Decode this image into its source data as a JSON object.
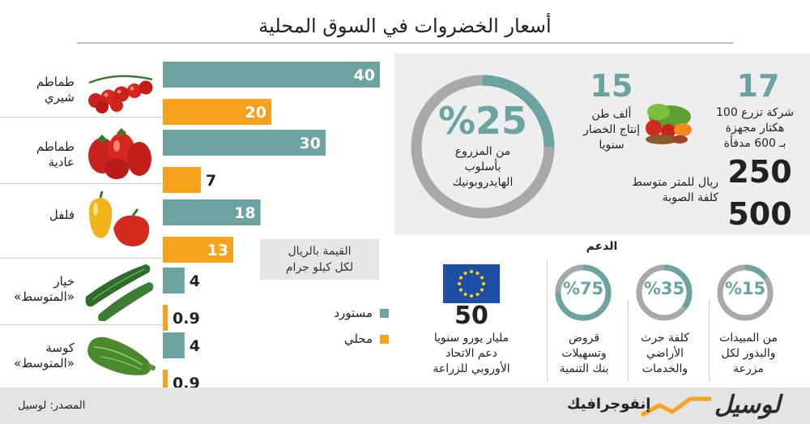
{
  "title": "أسعار الخضروات في السوق المحلية",
  "colors": {
    "imported": "#6aa39f",
    "local": "#f6a21c",
    "teal": "#6aa39f",
    "ring_bg": "#a8a8a8",
    "eu_blue": "#1f4fa5",
    "eu_star": "#ffd500"
  },
  "chart_data": {
    "type": "bar",
    "orientation": "horizontal",
    "categories": [
      "طماطم شيري",
      "طماطم عادية",
      "فلفل",
      "خيار «المتوسط»",
      "كوسة «المتوسط»"
    ],
    "series": [
      {
        "name": "مستورد",
        "values": [
          40,
          30,
          18,
          4,
          4
        ]
      },
      {
        "name": "محلي",
        "values": [
          20,
          7,
          13,
          0.9,
          0.9
        ]
      }
    ],
    "value_labels": {
      "imported": [
        "40",
        "30",
        "18",
        "4",
        "4"
      ],
      "local": [
        "20",
        "7",
        "13",
        "0.9",
        "0.9"
      ]
    },
    "xlim": [
      0,
      40
    ],
    "unit_note": [
      "القيمة بالريال",
      "لكل كيلو جرام"
    ]
  },
  "products": [
    {
      "line1": "طماطم",
      "line2": "شيري",
      "icon": "cherry-tomato-icon"
    },
    {
      "line1": "طماطم",
      "line2": "عادية",
      "icon": "tomato-icon"
    },
    {
      "line1": "فلفل",
      "line2": "",
      "icon": "pepper-icon"
    },
    {
      "line1": "خيار",
      "line2": "«المتوسط»",
      "icon": "cucumber-icon"
    },
    {
      "line1": "كوسة",
      "line2": "«المتوسط»",
      "icon": "zucchini-icon"
    }
  ],
  "legend": [
    {
      "label": "مستورد"
    },
    {
      "label": "محلي"
    }
  ],
  "stats": {
    "companies": {
      "value": "17",
      "lines": [
        "شركة تزرع 100",
        "هكتار مجهزة",
        "بـ 600 مدفأة"
      ]
    },
    "production": {
      "value": "15",
      "lines": [
        "ألف طن",
        "إنتاج الخضار",
        "سنويا"
      ]
    },
    "hydroponic": {
      "value": "%25",
      "percent": 25,
      "lines": [
        "من المزروع",
        "بأسلوب",
        "الهايدروبونيك"
      ]
    },
    "greenhouse_cost": {
      "low": "250",
      "high": "500",
      "lines": [
        "ريال للمتر متوسط",
        "كلفة الصوبة"
      ]
    }
  },
  "support": {
    "heading": "الدعم",
    "items": [
      {
        "value": "%15",
        "percent": 15,
        "lines": [
          "من المبيدات",
          "والبذور لكل",
          "مزرعة"
        ]
      },
      {
        "value": "%35",
        "percent": 35,
        "lines": [
          "كلفة حرث",
          "الأراضي",
          "والخدمات"
        ]
      },
      {
        "value": "%75",
        "percent": 75,
        "lines": [
          "قروض",
          "وتسهيلات",
          "بنك التنمية"
        ]
      }
    ],
    "eu": {
      "value": "50",
      "lines": [
        "مليار يورو سنويا",
        "دعم الاتحاد",
        "الأوروبي للزراعة"
      ]
    }
  },
  "footer": {
    "source": "المصدر: لوسيل",
    "brand_info": "إنفوجرافيك",
    "brand_name": "لوسيل"
  }
}
